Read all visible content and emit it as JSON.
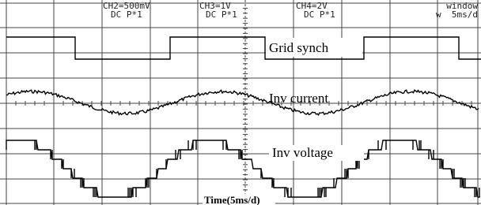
{
  "header": {
    "channels": [
      {
        "setting": "CH2=500mV",
        "coupling": "DC P*1"
      },
      {
        "setting": "CH3=1V",
        "coupling": "DC P*1"
      },
      {
        "setting": "CH4=2V",
        "coupling": "DC P*1"
      }
    ],
    "window": {
      "title": "window",
      "scale": "w  5ms/d"
    }
  },
  "traces": [
    {
      "label": "Grid synch"
    },
    {
      "label": "Inv current"
    },
    {
      "label": "Inv voltage"
    }
  ],
  "time_label": "Time(5ms/d)"
}
